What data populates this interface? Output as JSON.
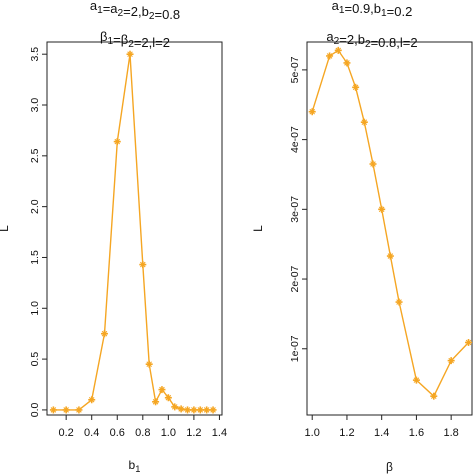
{
  "chart_data": [
    {
      "type": "line",
      "title_lines": [
        "a1=a2=2,b2=0.8",
        "β1=β2=2,l=2"
      ],
      "xlabel": "b1",
      "ylabel": "L",
      "xlim": [
        0.05,
        1.42
      ],
      "ylim": [
        -0.05,
        3.62
      ],
      "xticks": [
        0.2,
        0.4,
        0.6,
        0.8,
        1.0,
        1.2,
        1.4
      ],
      "xtick_labels": [
        "0.2",
        "0.4",
        "0.6",
        "0.8",
        "1.0",
        "1.2",
        "1.4"
      ],
      "yticks": [
        0.0,
        0.5,
        1.0,
        1.5,
        2.0,
        2.5,
        3.0,
        3.5
      ],
      "ytick_labels": [
        "0.0",
        "0.5",
        "1.0",
        "1.5",
        "2.0",
        "2.5",
        "3.0",
        "3.5"
      ],
      "grid": false,
      "color": "#F5A623",
      "series": [
        {
          "x": [
            0.1,
            0.2,
            0.3,
            0.4,
            0.5,
            0.6,
            0.7,
            0.8,
            0.85,
            0.9,
            0.95,
            1.0,
            1.05,
            1.1,
            1.15,
            1.2,
            1.25,
            1.3,
            1.35
          ],
          "y": [
            0.0,
            0.0,
            0.0,
            0.1,
            0.75,
            2.64,
            3.5,
            1.43,
            0.45,
            0.08,
            0.2,
            0.12,
            0.03,
            0.01,
            0.0,
            0.0,
            0.0,
            0.0,
            0.0
          ]
        }
      ]
    },
    {
      "type": "line",
      "title_lines": [
        "a1=0.9,b1=0.2",
        "a2=2,b2=0.8,l=2"
      ],
      "xlabel": "β",
      "ylabel": "L",
      "xlim": [
        0.97,
        1.92
      ],
      "ylim": [
        5e-09,
        5.4e-07
      ],
      "xticks": [
        1.0,
        1.2,
        1.4,
        1.6,
        1.8
      ],
      "xtick_labels": [
        "1.0",
        "1.2",
        "1.4",
        "1.6",
        "1.8"
      ],
      "yticks": [
        1e-07,
        2e-07,
        3e-07,
        4e-07,
        5e-07
      ],
      "ytick_labels": [
        "1e-07",
        "2e-07",
        "3e-07",
        "4e-07",
        "5e-07"
      ],
      "grid": false,
      "color": "#F5A623",
      "series": [
        {
          "x": [
            1.0,
            1.1,
            1.15,
            1.2,
            1.25,
            1.3,
            1.35,
            1.4,
            1.45,
            1.5,
            1.6,
            1.7,
            1.8,
            1.9
          ],
          "y": [
            4.4e-07,
            5.2e-07,
            5.28e-07,
            5.1e-07,
            4.75e-07,
            4.25e-07,
            3.65e-07,
            3e-07,
            2.33e-07,
            1.67e-07,
            5.5e-08,
            3.2e-08,
            8.3e-08,
            1.09e-07
          ]
        }
      ]
    }
  ]
}
